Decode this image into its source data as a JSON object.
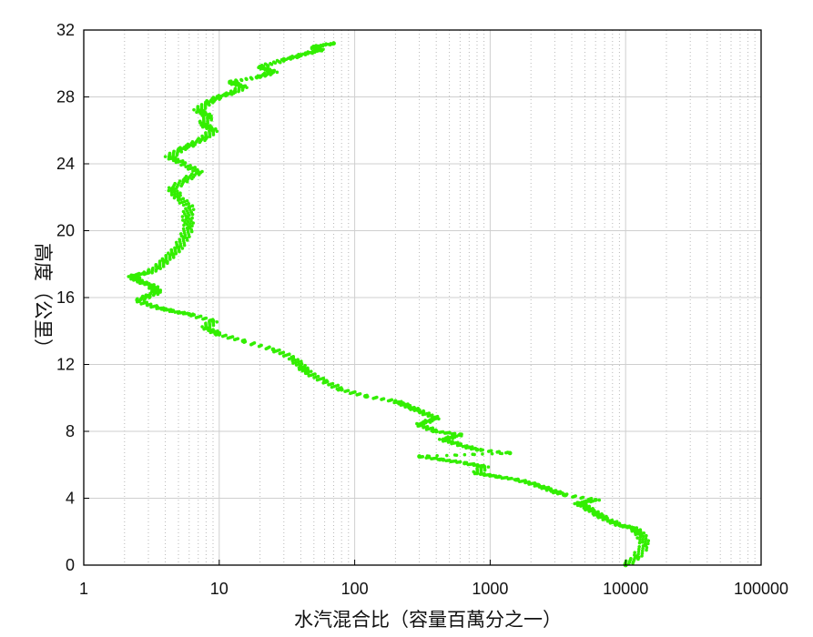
{
  "chart_data": {
    "type": "scatter",
    "title": "",
    "xlabel": "水汽混合比（容量百萬分之一）",
    "ylabel": "高度（公里）",
    "x_scale": "log",
    "xlim": [
      1,
      100000
    ],
    "ylim": [
      0,
      32
    ],
    "x_ticks": [
      "1",
      "10",
      "100",
      "1000",
      "10000",
      "100000"
    ],
    "y_ticks": [
      "0",
      "4",
      "8",
      "12",
      "16",
      "20",
      "24",
      "28",
      "32"
    ],
    "grid": true,
    "legend": "none",
    "marker_color": "#33ee00",
    "series": [
      {
        "points": [
          [
            10000,
            0.0
          ],
          [
            12000,
            0.5
          ],
          [
            14000,
            1.2
          ],
          [
            13000,
            1.8
          ],
          [
            11500,
            2.2
          ],
          [
            9000,
            2.4
          ],
          [
            7000,
            2.8
          ],
          [
            6000,
            3.1
          ],
          [
            5000,
            3.5
          ],
          [
            4500,
            3.7
          ],
          [
            6000,
            3.9
          ],
          [
            3500,
            4.2
          ],
          [
            2800,
            4.5
          ],
          [
            2200,
            4.8
          ],
          [
            1600,
            5.1
          ],
          [
            1100,
            5.3
          ],
          [
            800,
            5.5
          ],
          [
            900,
            5.9
          ],
          [
            650,
            6.1
          ],
          [
            450,
            6.3
          ],
          [
            300,
            6.5
          ],
          [
            1400,
            6.7
          ],
          [
            800,
            6.9
          ],
          [
            600,
            7.2
          ],
          [
            450,
            7.5
          ],
          [
            600,
            7.8
          ],
          [
            400,
            8.0
          ],
          [
            300,
            8.4
          ],
          [
            400,
            8.8
          ],
          [
            300,
            9.2
          ],
          [
            250,
            9.5
          ],
          [
            200,
            9.8
          ],
          [
            120,
            10.1
          ],
          [
            80,
            10.5
          ],
          [
            60,
            11.0
          ],
          [
            45,
            11.5
          ],
          [
            40,
            11.9
          ],
          [
            35,
            12.4
          ],
          [
            25,
            12.9
          ],
          [
            15,
            13.4
          ],
          [
            10,
            13.8
          ],
          [
            8,
            14.2
          ],
          [
            9,
            14.6
          ],
          [
            6,
            15.0
          ],
          [
            4.5,
            15.2
          ],
          [
            3.5,
            15.4
          ],
          [
            2.5,
            15.8
          ],
          [
            3,
            16.1
          ],
          [
            3.5,
            16.3
          ],
          [
            3.2,
            16.7
          ],
          [
            2.5,
            17.0
          ],
          [
            2.3,
            17.3
          ],
          [
            3,
            17.5
          ],
          [
            3.5,
            17.8
          ],
          [
            4,
            18.2
          ],
          [
            4.5,
            18.6
          ],
          [
            5,
            19.0
          ],
          [
            5.5,
            19.6
          ],
          [
            6,
            20.2
          ],
          [
            5.8,
            20.8
          ],
          [
            6,
            21.4
          ],
          [
            5,
            22.0
          ],
          [
            4.5,
            22.5
          ],
          [
            5.5,
            23.0
          ],
          [
            7,
            23.5
          ],
          [
            5.5,
            24.0
          ],
          [
            4.3,
            24.4
          ],
          [
            5,
            24.8
          ],
          [
            6.5,
            25.2
          ],
          [
            8,
            25.6
          ],
          [
            9,
            26.0
          ],
          [
            7.5,
            26.4
          ],
          [
            8.5,
            26.8
          ],
          [
            7,
            27.2
          ],
          [
            8,
            27.6
          ],
          [
            10,
            28.0
          ],
          [
            13,
            28.3
          ],
          [
            15,
            28.6
          ],
          [
            12,
            28.9
          ],
          [
            20,
            29.2
          ],
          [
            25,
            29.5
          ],
          [
            20,
            29.8
          ],
          [
            30,
            30.2
          ],
          [
            40,
            30.5
          ],
          [
            55,
            30.8
          ],
          [
            50,
            31.0
          ],
          [
            70,
            31.2
          ]
        ]
      }
    ]
  }
}
